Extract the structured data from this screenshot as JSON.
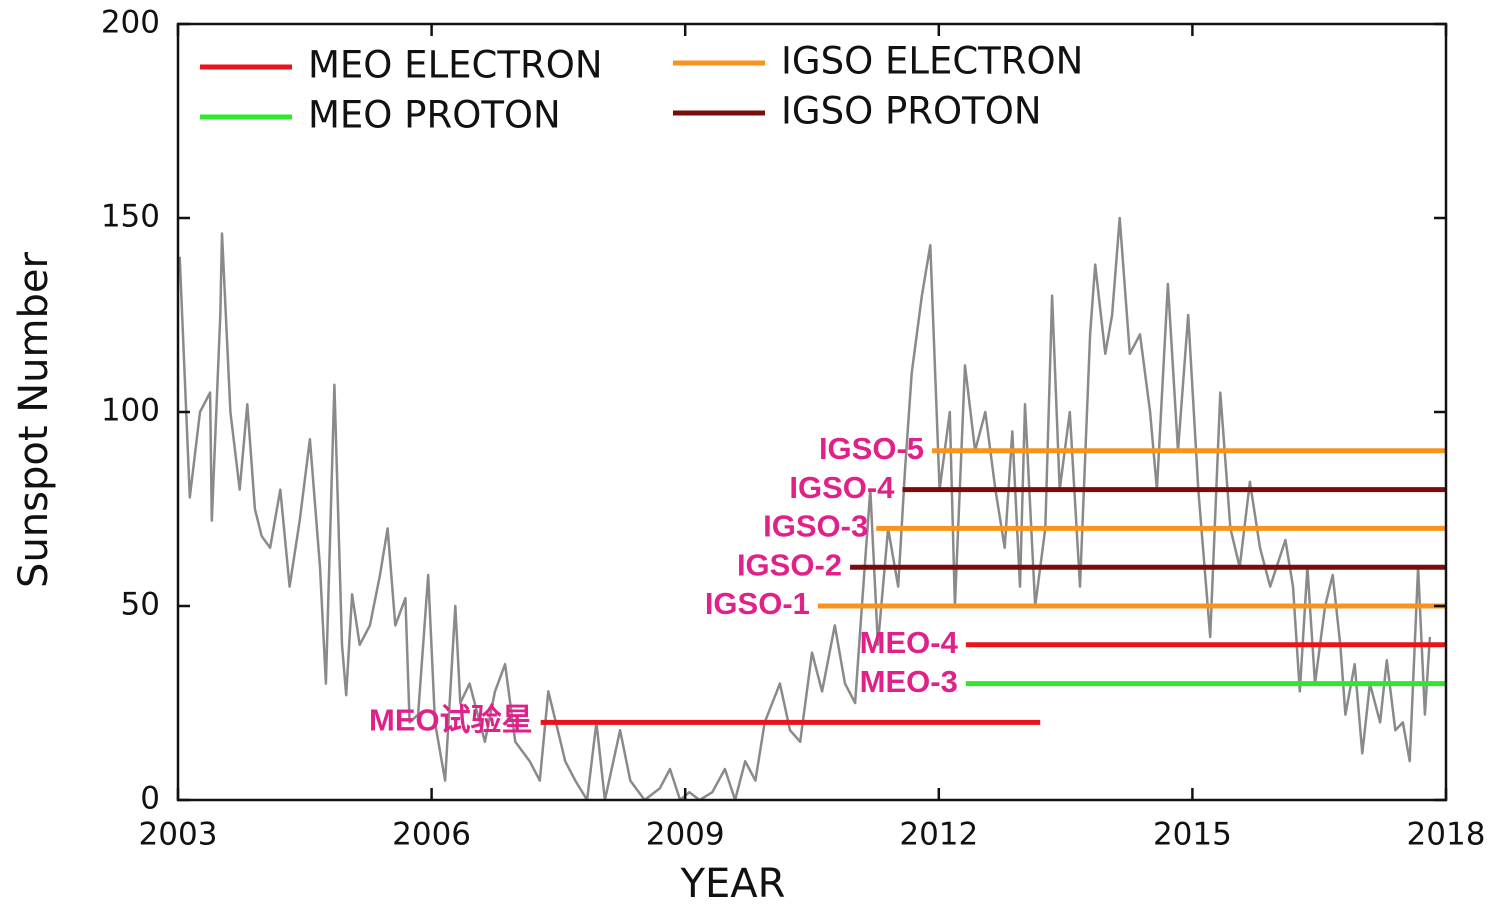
{
  "chart_data": {
    "type": "line",
    "xlabel": "YEAR",
    "ylabel": "Sunspot Number",
    "xlim": [
      2003,
      2018
    ],
    "xticks": [
      2003,
      2006,
      2009,
      2012,
      2015,
      2018
    ],
    "ylim": [
      0,
      200
    ],
    "yticks": [
      0,
      50,
      100,
      150,
      200
    ],
    "legend": [
      {
        "name": "MEO ELECTRON",
        "color": "#e8141c"
      },
      {
        "name": "MEO PROTON",
        "color": "#2de82d"
      },
      {
        "name": "IGSO ELECTRON",
        "color": "#f7931e"
      },
      {
        "name": "IGSO PROTON",
        "color": "#7a0c0c"
      }
    ],
    "sunspot": {
      "color": "#8a8a8a",
      "x": [
        2003.02,
        2003.14,
        2003.26,
        2003.38,
        2003.4,
        2003.5,
        2003.52,
        2003.62,
        2003.73,
        2003.82,
        2003.91,
        2003.99,
        2004.09,
        2004.21,
        2004.32,
        2004.44,
        2004.56,
        2004.68,
        2004.75,
        2004.85,
        2004.94,
        2004.99,
        2005.06,
        2005.15,
        2005.27,
        2005.39,
        2005.48,
        2005.57,
        2005.69,
        2005.74,
        2005.84,
        2005.96,
        2006.04,
        2006.16,
        2006.28,
        2006.34,
        2006.45,
        2006.63,
        2006.75,
        2006.87,
        2006.99,
        2007.16,
        2007.28,
        2007.38,
        2007.47,
        2007.58,
        2007.7,
        2007.84,
        2007.95,
        2008.05,
        2008.23,
        2008.35,
        2008.52,
        2008.7,
        2008.82,
        2008.94,
        2009.05,
        2009.17,
        2009.32,
        2009.47,
        2009.59,
        2009.71,
        2009.83,
        2009.94,
        2010.12,
        2010.24,
        2010.36,
        2010.5,
        2010.62,
        2010.77,
        2010.89,
        2011.01,
        2011.09,
        2011.19,
        2011.28,
        2011.4,
        2011.52,
        2011.6,
        2011.68,
        2011.8,
        2011.9,
        2012.01,
        2012.13,
        2012.19,
        2012.31,
        2012.43,
        2012.55,
        2012.67,
        2012.78,
        2012.87,
        2012.96,
        2013.02,
        2013.14,
        2013.26,
        2013.34,
        2013.43,
        2013.55,
        2013.67,
        2013.79,
        2013.85,
        2013.97,
        2014.05,
        2014.14,
        2014.26,
        2014.38,
        2014.5,
        2014.58,
        2014.71,
        2014.83,
        2014.95,
        2015.07,
        2015.21,
        2015.33,
        2015.45,
        2015.56,
        2015.68,
        2015.8,
        2015.92,
        2016.1,
        2016.19,
        2016.27,
        2016.36,
        2016.45,
        2016.57,
        2016.66,
        2016.75,
        2016.81,
        2016.92,
        2017.01,
        2017.1,
        2017.22,
        2017.3,
        2017.4,
        2017.49,
        2017.57,
        2017.67,
        2017.75,
        2017.81
      ],
      "values": [
        140,
        78,
        100,
        105,
        72,
        125,
        146,
        100,
        80,
        102,
        75,
        68,
        65,
        80,
        55,
        72,
        93,
        60,
        30,
        107,
        40,
        27,
        53,
        40,
        45,
        58,
        70,
        45,
        52,
        20,
        22,
        58,
        20,
        5,
        50,
        25,
        30,
        15,
        28,
        35,
        15,
        10,
        5,
        28,
        20,
        10,
        5,
        0,
        20,
        0,
        18,
        5,
        0,
        3,
        8,
        0,
        2,
        0,
        2,
        8,
        0,
        10,
        5,
        20,
        30,
        18,
        15,
        38,
        28,
        45,
        30,
        25,
        50,
        80,
        40,
        70,
        55,
        85,
        110,
        130,
        143,
        80,
        100,
        50,
        112,
        90,
        100,
        80,
        65,
        95,
        55,
        102,
        50,
        70,
        130,
        80,
        100,
        55,
        120,
        138,
        115,
        125,
        150,
        115,
        120,
        100,
        80,
        133,
        90,
        125,
        80,
        42,
        105,
        70,
        60,
        82,
        65,
        55,
        67,
        55,
        28,
        60,
        30,
        50,
        58,
        40,
        22,
        35,
        12,
        30,
        20,
        36,
        18,
        20,
        10,
        60,
        22,
        42
      ]
    },
    "missions": [
      {
        "label": "IGSO-5",
        "color": "#f7931e",
        "level": 90,
        "start": 2011.92,
        "end": 2018
      },
      {
        "label": "IGSO-4",
        "color": "#7a0c0c",
        "level": 80,
        "start": 2011.57,
        "end": 2018
      },
      {
        "label": "IGSO-3",
        "color": "#f7931e",
        "level": 70,
        "start": 2011.26,
        "end": 2018
      },
      {
        "label": "IGSO-2",
        "color": "#7a0c0c",
        "level": 60,
        "start": 2010.95,
        "end": 2018
      },
      {
        "label": "IGSO-1",
        "color": "#f7931e",
        "level": 50,
        "start": 2010.57,
        "end": 2018
      },
      {
        "label": "MEO-4",
        "color": "#e8141c",
        "level": 40,
        "start": 2012.32,
        "end": 2018
      },
      {
        "label": "MEO-3",
        "color": "#2de82d",
        "level": 30,
        "start": 2012.32,
        "end": 2018
      },
      {
        "label": "MEO试验星",
        "color": "#e8141c",
        "level": 20,
        "start": 2007.29,
        "end": 2013.2
      }
    ]
  }
}
